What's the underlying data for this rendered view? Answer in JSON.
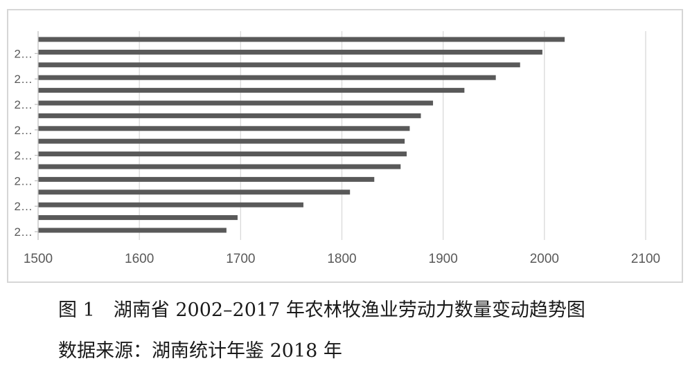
{
  "chart_data": {
    "type": "bar",
    "orientation": "horizontal",
    "categories": [
      "2…",
      "2…",
      "2…",
      "2…",
      "2…",
      "2…",
      "2…",
      "2…",
      "2…",
      "2…",
      "2…",
      "2…",
      "2…",
      "2…",
      "2…",
      "2…"
    ],
    "values": [
      2020,
      1998,
      1976,
      1952,
      1921,
      1890,
      1878,
      1867,
      1862,
      1864,
      1858,
      1832,
      1808,
      1762,
      1697,
      1686
    ],
    "xlim": [
      1500,
      2100
    ],
    "xticks": [
      "1500",
      "1600",
      "1700",
      "1800",
      "1900",
      "2000",
      "2100"
    ],
    "grid": "vertical",
    "legend": "none",
    "bar_color": "#595959",
    "grid_color": "#d9d9d9"
  },
  "caption": {
    "title": "图 1　湖南省 2002–2017 年农林牧渔业劳动力数量变动趋势图",
    "source": "数据来源：湖南统计年鉴 2018 年"
  }
}
